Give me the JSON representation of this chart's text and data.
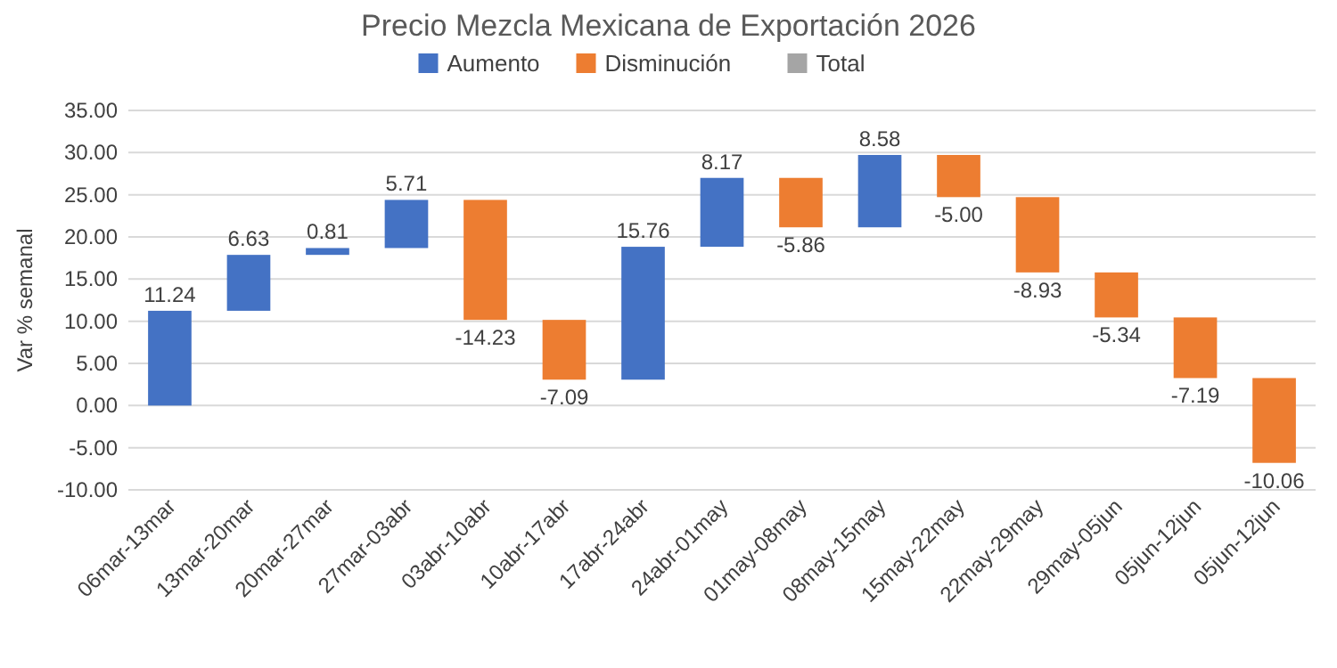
{
  "chart_data": {
    "type": "bar",
    "title": "Precio Mezcla Mexicana de Exportación 2026",
    "ylabel": "Var % semanal",
    "categories": [
      "06mar-13mar",
      "13mar-20mar",
      "20mar-27mar",
      "27mar-03abr",
      "03abr-10abr",
      "10abr-17abr",
      "17abr-24abr",
      "24abr-01may",
      "01may-08may",
      "08may-15may",
      "15may-22may",
      "22may-29may",
      "29may-05jun",
      "05jun-12jun",
      "05jun-12jun"
    ],
    "series": [
      {
        "name": "Aumento",
        "color": "#4472c4",
        "values": [
          11.24,
          6.63,
          0.81,
          5.71,
          null,
          null,
          15.76,
          8.17,
          null,
          8.58,
          null,
          null,
          null,
          null,
          null
        ],
        "base": [
          0,
          11.24,
          17.87,
          18.68,
          null,
          null,
          3.07,
          18.83,
          null,
          21.14,
          null,
          null,
          null,
          null,
          null
        ],
        "value_labels": [
          "11.24",
          "6.63",
          "0.81",
          "5.71",
          null,
          null,
          "15.76",
          "8.17",
          null,
          "8.58",
          null,
          null,
          null,
          null,
          null
        ]
      },
      {
        "name": "Disminución",
        "color": "#ed7d31",
        "values": [
          null,
          null,
          null,
          null,
          -14.23,
          -7.09,
          null,
          null,
          -5.86,
          null,
          -5.0,
          -8.93,
          -5.34,
          -7.19,
          -10.06
        ],
        "base": [
          null,
          null,
          null,
          null,
          24.39,
          10.16,
          null,
          null,
          27.0,
          null,
          29.72,
          24.72,
          15.79,
          10.45,
          3.26
        ],
        "value_labels": [
          null,
          null,
          null,
          null,
          "-14.23",
          "-7.09",
          null,
          null,
          "-5.86",
          null,
          "-5.00",
          "-8.93",
          "-5.34",
          "-7.19",
          "-10.06"
        ]
      },
      {
        "name": "Total",
        "color": "#a5a5a5",
        "values": [
          null,
          null,
          null,
          null,
          null,
          null,
          null,
          null,
          null,
          null,
          null,
          null,
          null,
          null,
          null
        ]
      }
    ],
    "ylim": [
      -10,
      35
    ],
    "yticks": [
      {
        "value": -10,
        "label": "-10.00"
      },
      {
        "value": -5,
        "label": "-5.00"
      },
      {
        "value": 0,
        "label": "0.00"
      },
      {
        "value": 5,
        "label": "5.00"
      },
      {
        "value": 10,
        "label": "10.00"
      },
      {
        "value": 15,
        "label": "15.00"
      },
      {
        "value": 20,
        "label": "20.00"
      },
      {
        "value": 25,
        "label": "25.00"
      },
      {
        "value": 30,
        "label": "30.00"
      },
      {
        "value": 35,
        "label": "35.00"
      }
    ],
    "grid": true,
    "legend": "top"
  }
}
